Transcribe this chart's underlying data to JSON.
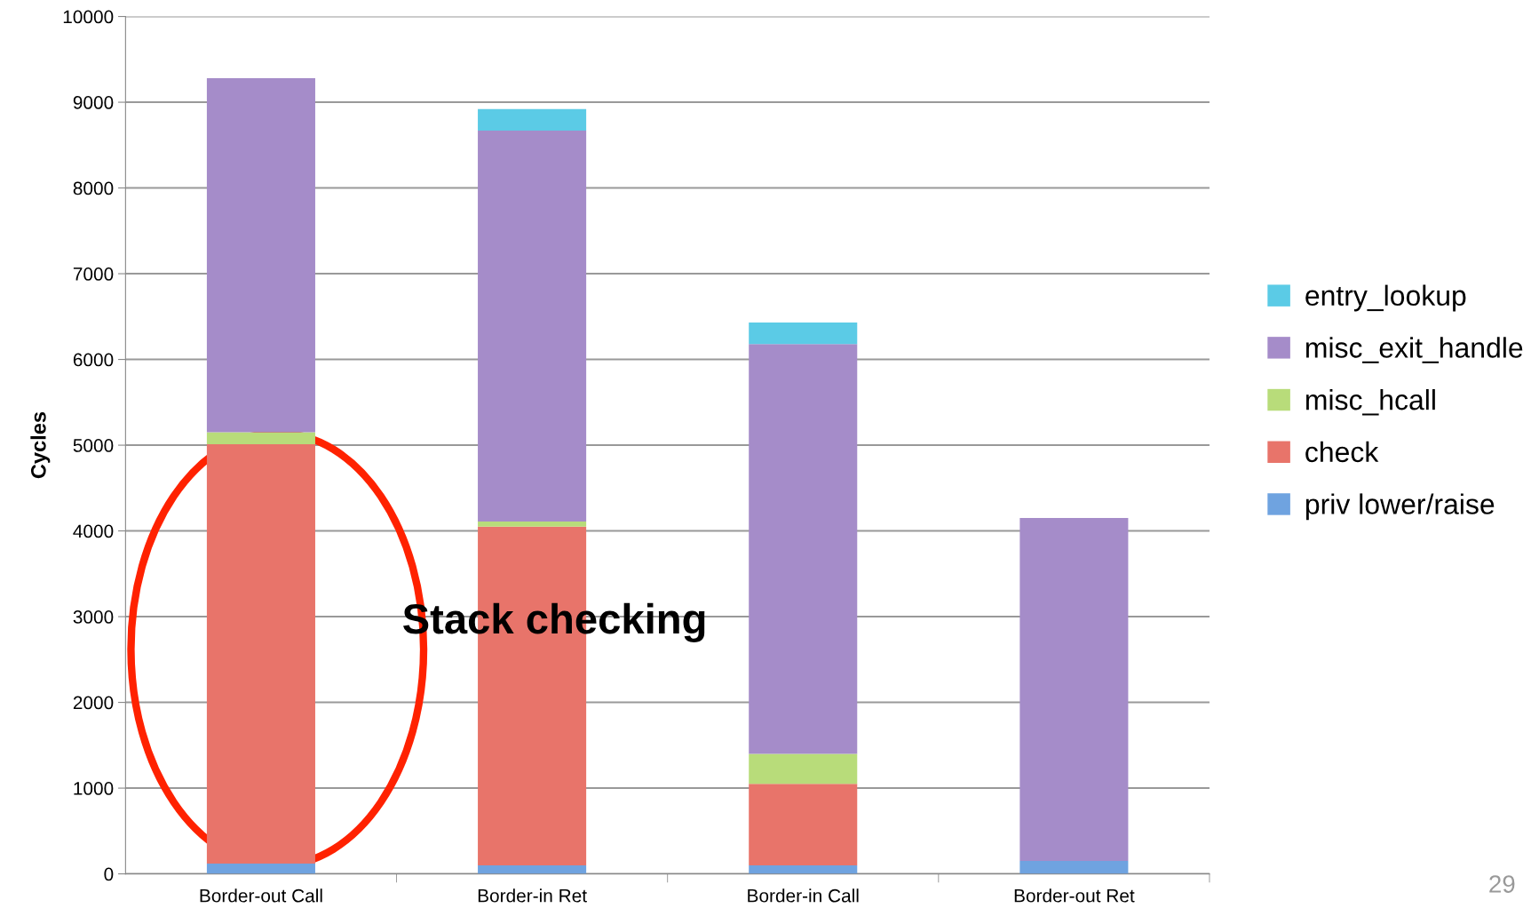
{
  "chart_data": {
    "type": "bar",
    "stacked": true,
    "ylabel": "Cycles",
    "categories": [
      "Border-out Call",
      "Border-in Ret",
      "Border-in Call",
      "Border-out Ret"
    ],
    "series": [
      {
        "name": "priv lower/raise",
        "color": "#6fa3e0",
        "values": [
          120,
          100,
          100,
          150
        ]
      },
      {
        "name": "check",
        "color": "#e8746a",
        "values": [
          4890,
          3950,
          950,
          0
        ]
      },
      {
        "name": "misc_hcall",
        "color": "#b8dc7a",
        "values": [
          140,
          60,
          350,
          0
        ]
      },
      {
        "name": "misc_exit_handle",
        "color": "#a58cc9",
        "values": [
          4130,
          4560,
          4780,
          4000
        ]
      },
      {
        "name": "entry_lookup",
        "color": "#5bcbe6",
        "values": [
          0,
          250,
          250,
          0
        ]
      }
    ],
    "ylim": [
      0,
      10000
    ],
    "yticks": [
      0,
      1000,
      2000,
      3000,
      4000,
      5000,
      6000,
      7000,
      8000,
      9000,
      10000
    ],
    "grid": "y",
    "legend": "right",
    "annotations": [
      "Stack checking",
      "29"
    ]
  }
}
